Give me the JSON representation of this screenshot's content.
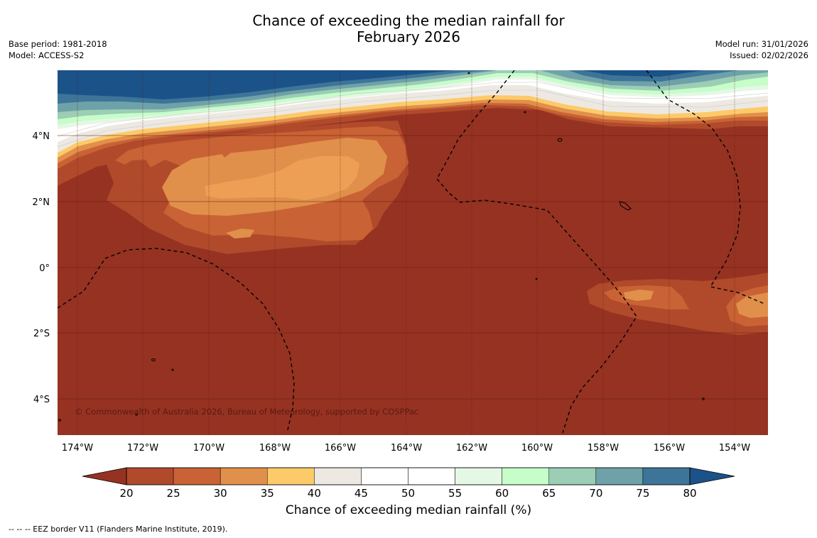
{
  "header": {
    "title_line1": "Chance of exceeding the median rainfall for",
    "title_line2": "February 2026",
    "base_period": "Base period: 1981-2018",
    "model": "Model: ACCESS-S2",
    "model_run": "Model run: 31/01/2026",
    "issued": "Issued: 02/02/2026"
  },
  "map": {
    "copyright": "© Commonwealth of Australia 2026, Bureau of Meteorology, supported by COSPPac",
    "lat_labels": [
      "4°N",
      "2°N",
      "0°",
      "2°S",
      "4°S"
    ],
    "lon_labels": [
      "174°W",
      "172°W",
      "170°W",
      "168°W",
      "166°W",
      "164°W",
      "162°W",
      "160°W",
      "158°W",
      "156°W",
      "154°W"
    ]
  },
  "colorbar": {
    "title": "Chance of exceeding median rainfall (%)",
    "ticks": [
      "20",
      "25",
      "30",
      "35",
      "40",
      "45",
      "50",
      "55",
      "60",
      "65",
      "70",
      "75",
      "80"
    ],
    "colors": [
      "#963222",
      "#b04a2b",
      "#c96234",
      "#e0904a",
      "#fdca6a",
      "#ede9e2",
      "#ffffff",
      "#ffffff",
      "#e5f7e5",
      "#c6fdc9",
      "#9ccdb5",
      "#6ea2a8",
      "#3d7498",
      "#1b5288"
    ]
  },
  "legend": {
    "eez": "--  --  -- EEZ border V11 (Flanders Marine Institute, 2019)."
  }
}
